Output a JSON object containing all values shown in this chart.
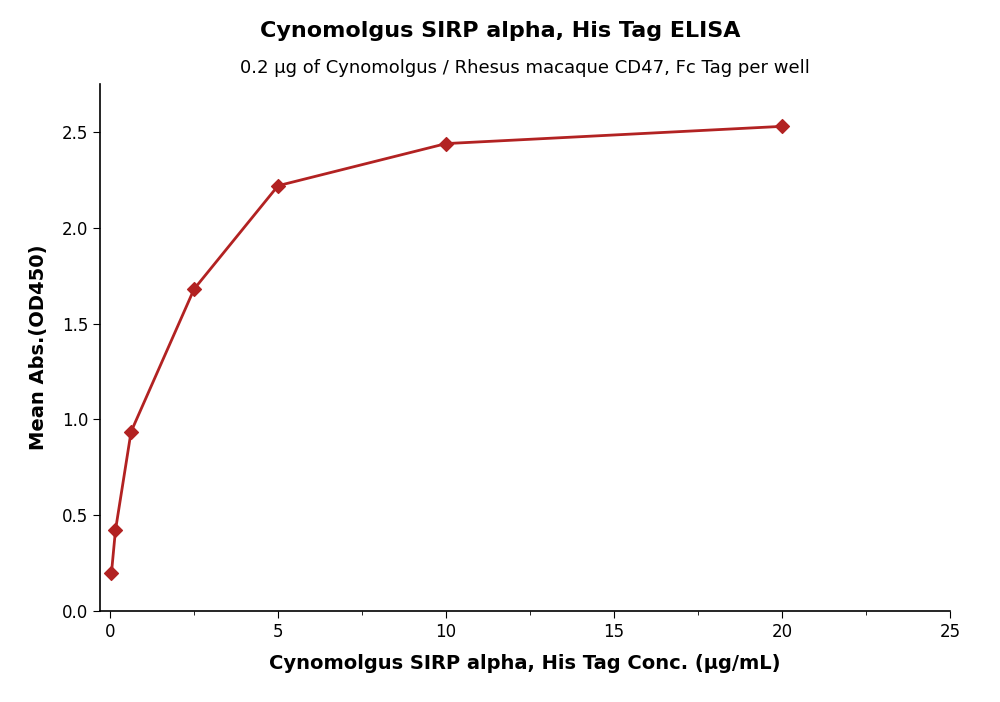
{
  "title": "Cynomolgus SIRP alpha, His Tag ELISA",
  "subtitle": "0.2 μg of Cynomolgus / Rhesus macaque CD47, Fc Tag per well",
  "xlabel": "Cynomolgus SIRP alpha, His Tag Conc. (μg/mL)",
  "ylabel": "Mean Abs.(OD450)",
  "x_data_points": [
    0.04,
    0.16,
    0.625,
    2.5,
    5.0,
    10.0,
    20.0
  ],
  "y_data_points": [
    0.195,
    0.42,
    0.935,
    1.68,
    2.22,
    2.44,
    2.53
  ],
  "xlim": [
    -0.3,
    25
  ],
  "ylim": [
    0.0,
    2.75
  ],
  "xticks": [
    0,
    5,
    10,
    15,
    20,
    25
  ],
  "yticks": [
    0.0,
    0.5,
    1.0,
    1.5,
    2.0,
    2.5
  ],
  "color": "#b22222",
  "marker": "D",
  "marker_size": 7,
  "title_fontsize": 16,
  "subtitle_fontsize": 13,
  "axis_label_fontsize": 14,
  "tick_fontsize": 12,
  "background_color": "#ffffff",
  "line_width": 2.0
}
